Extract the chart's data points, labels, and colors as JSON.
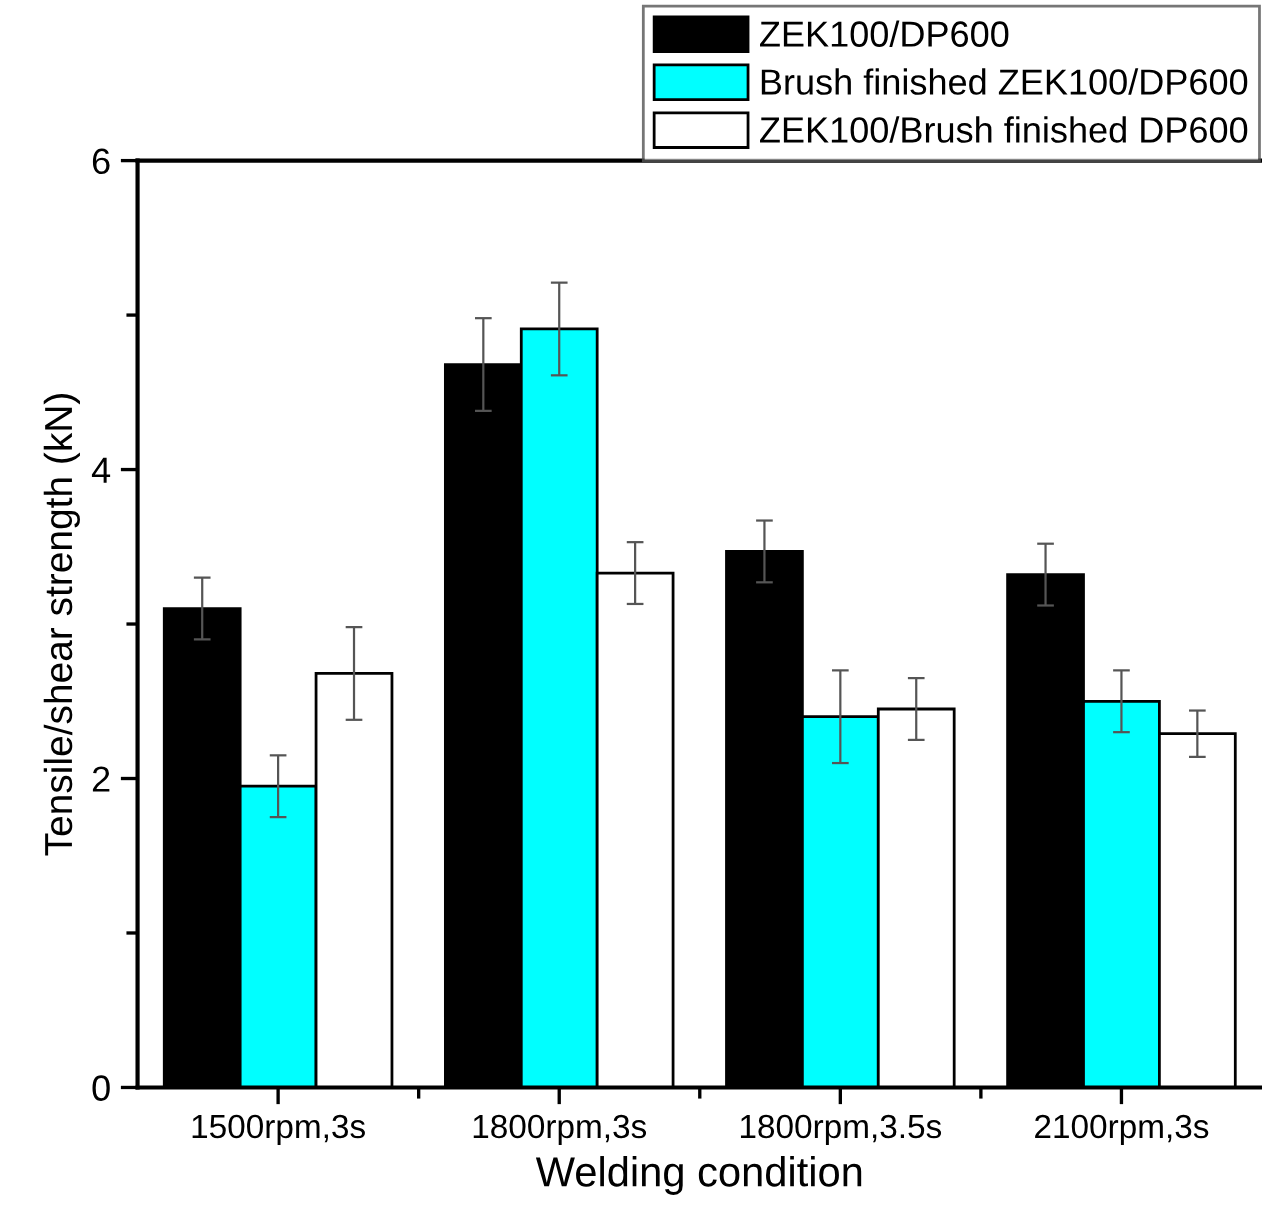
{
  "chart_data": {
    "type": "bar",
    "xlabel": "Welding condition",
    "ylabel": "Tensile/shear strength (kN)",
    "categories": [
      "1500rpm,3s",
      "1800rpm,3s",
      "1800rpm,3.5s",
      "2100rpm,3s"
    ],
    "series": [
      {
        "name": "ZEK100/DP600",
        "color": "#000000",
        "values": [
          3.1,
          4.68,
          3.47,
          3.32
        ],
        "errors": [
          0.2,
          0.3,
          0.2,
          0.2
        ]
      },
      {
        "name": "Brush finished ZEK100/DP600",
        "color": "#00ffff",
        "values": [
          1.95,
          4.91,
          2.4,
          2.5
        ],
        "errors": [
          0.2,
          0.3,
          0.3,
          0.2
        ]
      },
      {
        "name": "ZEK100/Brush finished DP600",
        "color": "#ffffff",
        "values": [
          2.68,
          3.33,
          2.45,
          2.29
        ],
        "errors": [
          0.3,
          0.2,
          0.2,
          0.15
        ]
      }
    ],
    "ylim": [
      0,
      6
    ],
    "yticks": [
      0,
      {
        "value": 1,
        "label": null
      },
      2,
      {
        "value": 3,
        "label": null
      },
      4,
      {
        "value": 5,
        "label": null
      },
      6
    ],
    "grid": false,
    "legend": "top right"
  }
}
